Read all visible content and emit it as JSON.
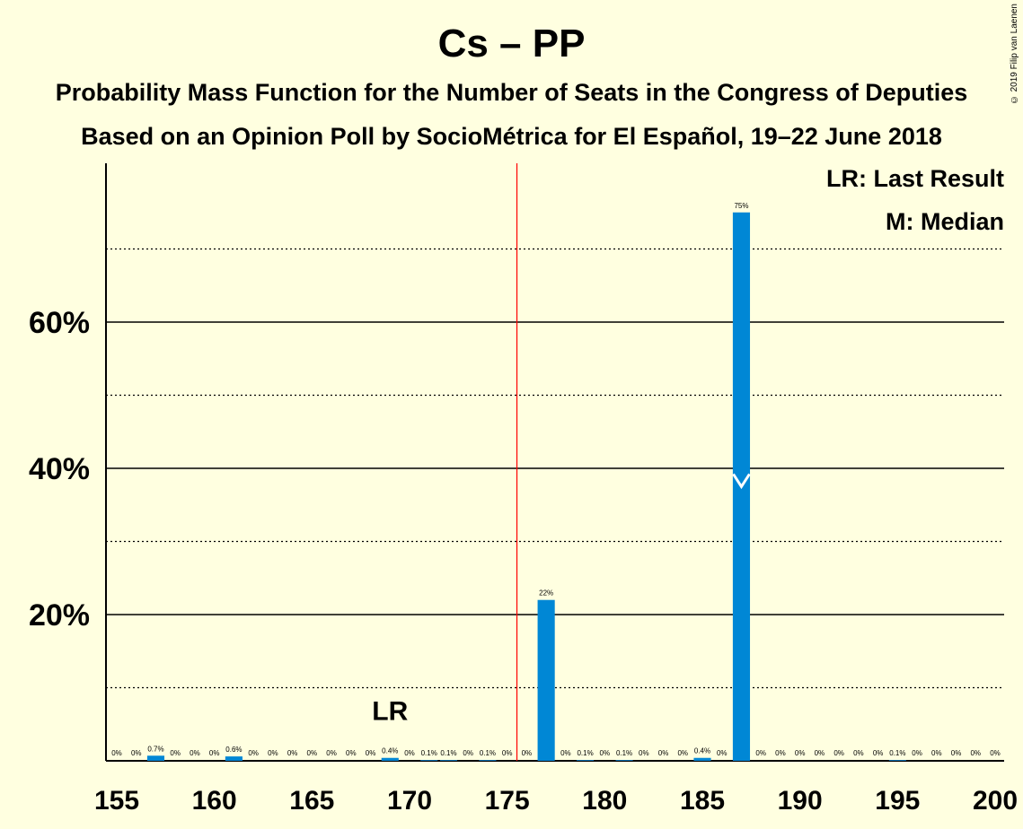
{
  "chart_data": {
    "type": "bar",
    "title": "Cs – PP",
    "subtitle": "Probability Mass Function for the Number of Seats in the Congress of Deputies",
    "subtitle2": "Based on an Opinion Poll by SocioMétrica for El Español, 19–22 June 2018",
    "copyright": "© 2019 Filip van Laenen",
    "legend": {
      "lr": "LR: Last Result",
      "median": "M: Median"
    },
    "lr_label": "LR",
    "x": [
      155,
      156,
      157,
      158,
      159,
      160,
      161,
      162,
      163,
      164,
      165,
      166,
      167,
      168,
      169,
      170,
      171,
      172,
      173,
      174,
      175,
      176,
      177,
      178,
      179,
      180,
      181,
      182,
      183,
      184,
      185,
      186,
      187,
      188,
      189,
      190,
      191,
      192,
      193,
      194,
      195,
      196,
      197,
      198,
      199,
      200
    ],
    "values": [
      0,
      0,
      0.7,
      0,
      0,
      0,
      0.6,
      0,
      0,
      0,
      0,
      0,
      0,
      0,
      0.4,
      0,
      0.1,
      0.1,
      0,
      0.1,
      0,
      0,
      22,
      0,
      0.1,
      0,
      0.1,
      0,
      0,
      0,
      0.4,
      0,
      75,
      0,
      0,
      0,
      0,
      0,
      0,
      0,
      0.1,
      0,
      0,
      0,
      0,
      0
    ],
    "labels": [
      "0%",
      "0%",
      "0.7%",
      "0%",
      "0%",
      "0%",
      "0.6%",
      "0%",
      "0%",
      "0%",
      "0%",
      "0%",
      "0%",
      "0%",
      "0.4%",
      "0%",
      "0.1%",
      "0.1%",
      "0%",
      "0.1%",
      "0%",
      "0%",
      "22%",
      "0%",
      "0.1%",
      "0%",
      "0.1%",
      "0%",
      "0%",
      "0%",
      "0.4%",
      "0%",
      "75%",
      "0%",
      "0%",
      "0%",
      "0%",
      "0%",
      "0%",
      "0%",
      "0.1%",
      "0%",
      "0%",
      "0%",
      "0%",
      "0%"
    ],
    "xticks": [
      155,
      160,
      165,
      170,
      175,
      180,
      185,
      190,
      195,
      200
    ],
    "yticks": [
      {
        "v": 20,
        "label": "20%"
      },
      {
        "v": 40,
        "label": "40%"
      },
      {
        "v": 60,
        "label": "60%"
      }
    ],
    "ylim": [
      0,
      80
    ],
    "xlim": [
      155,
      200
    ],
    "majority_line": 176,
    "last_result": 169,
    "median": 187,
    "colors": {
      "bar": "#0087D5",
      "majority": "#FF0000",
      "background": "#FFFFE0"
    }
  }
}
